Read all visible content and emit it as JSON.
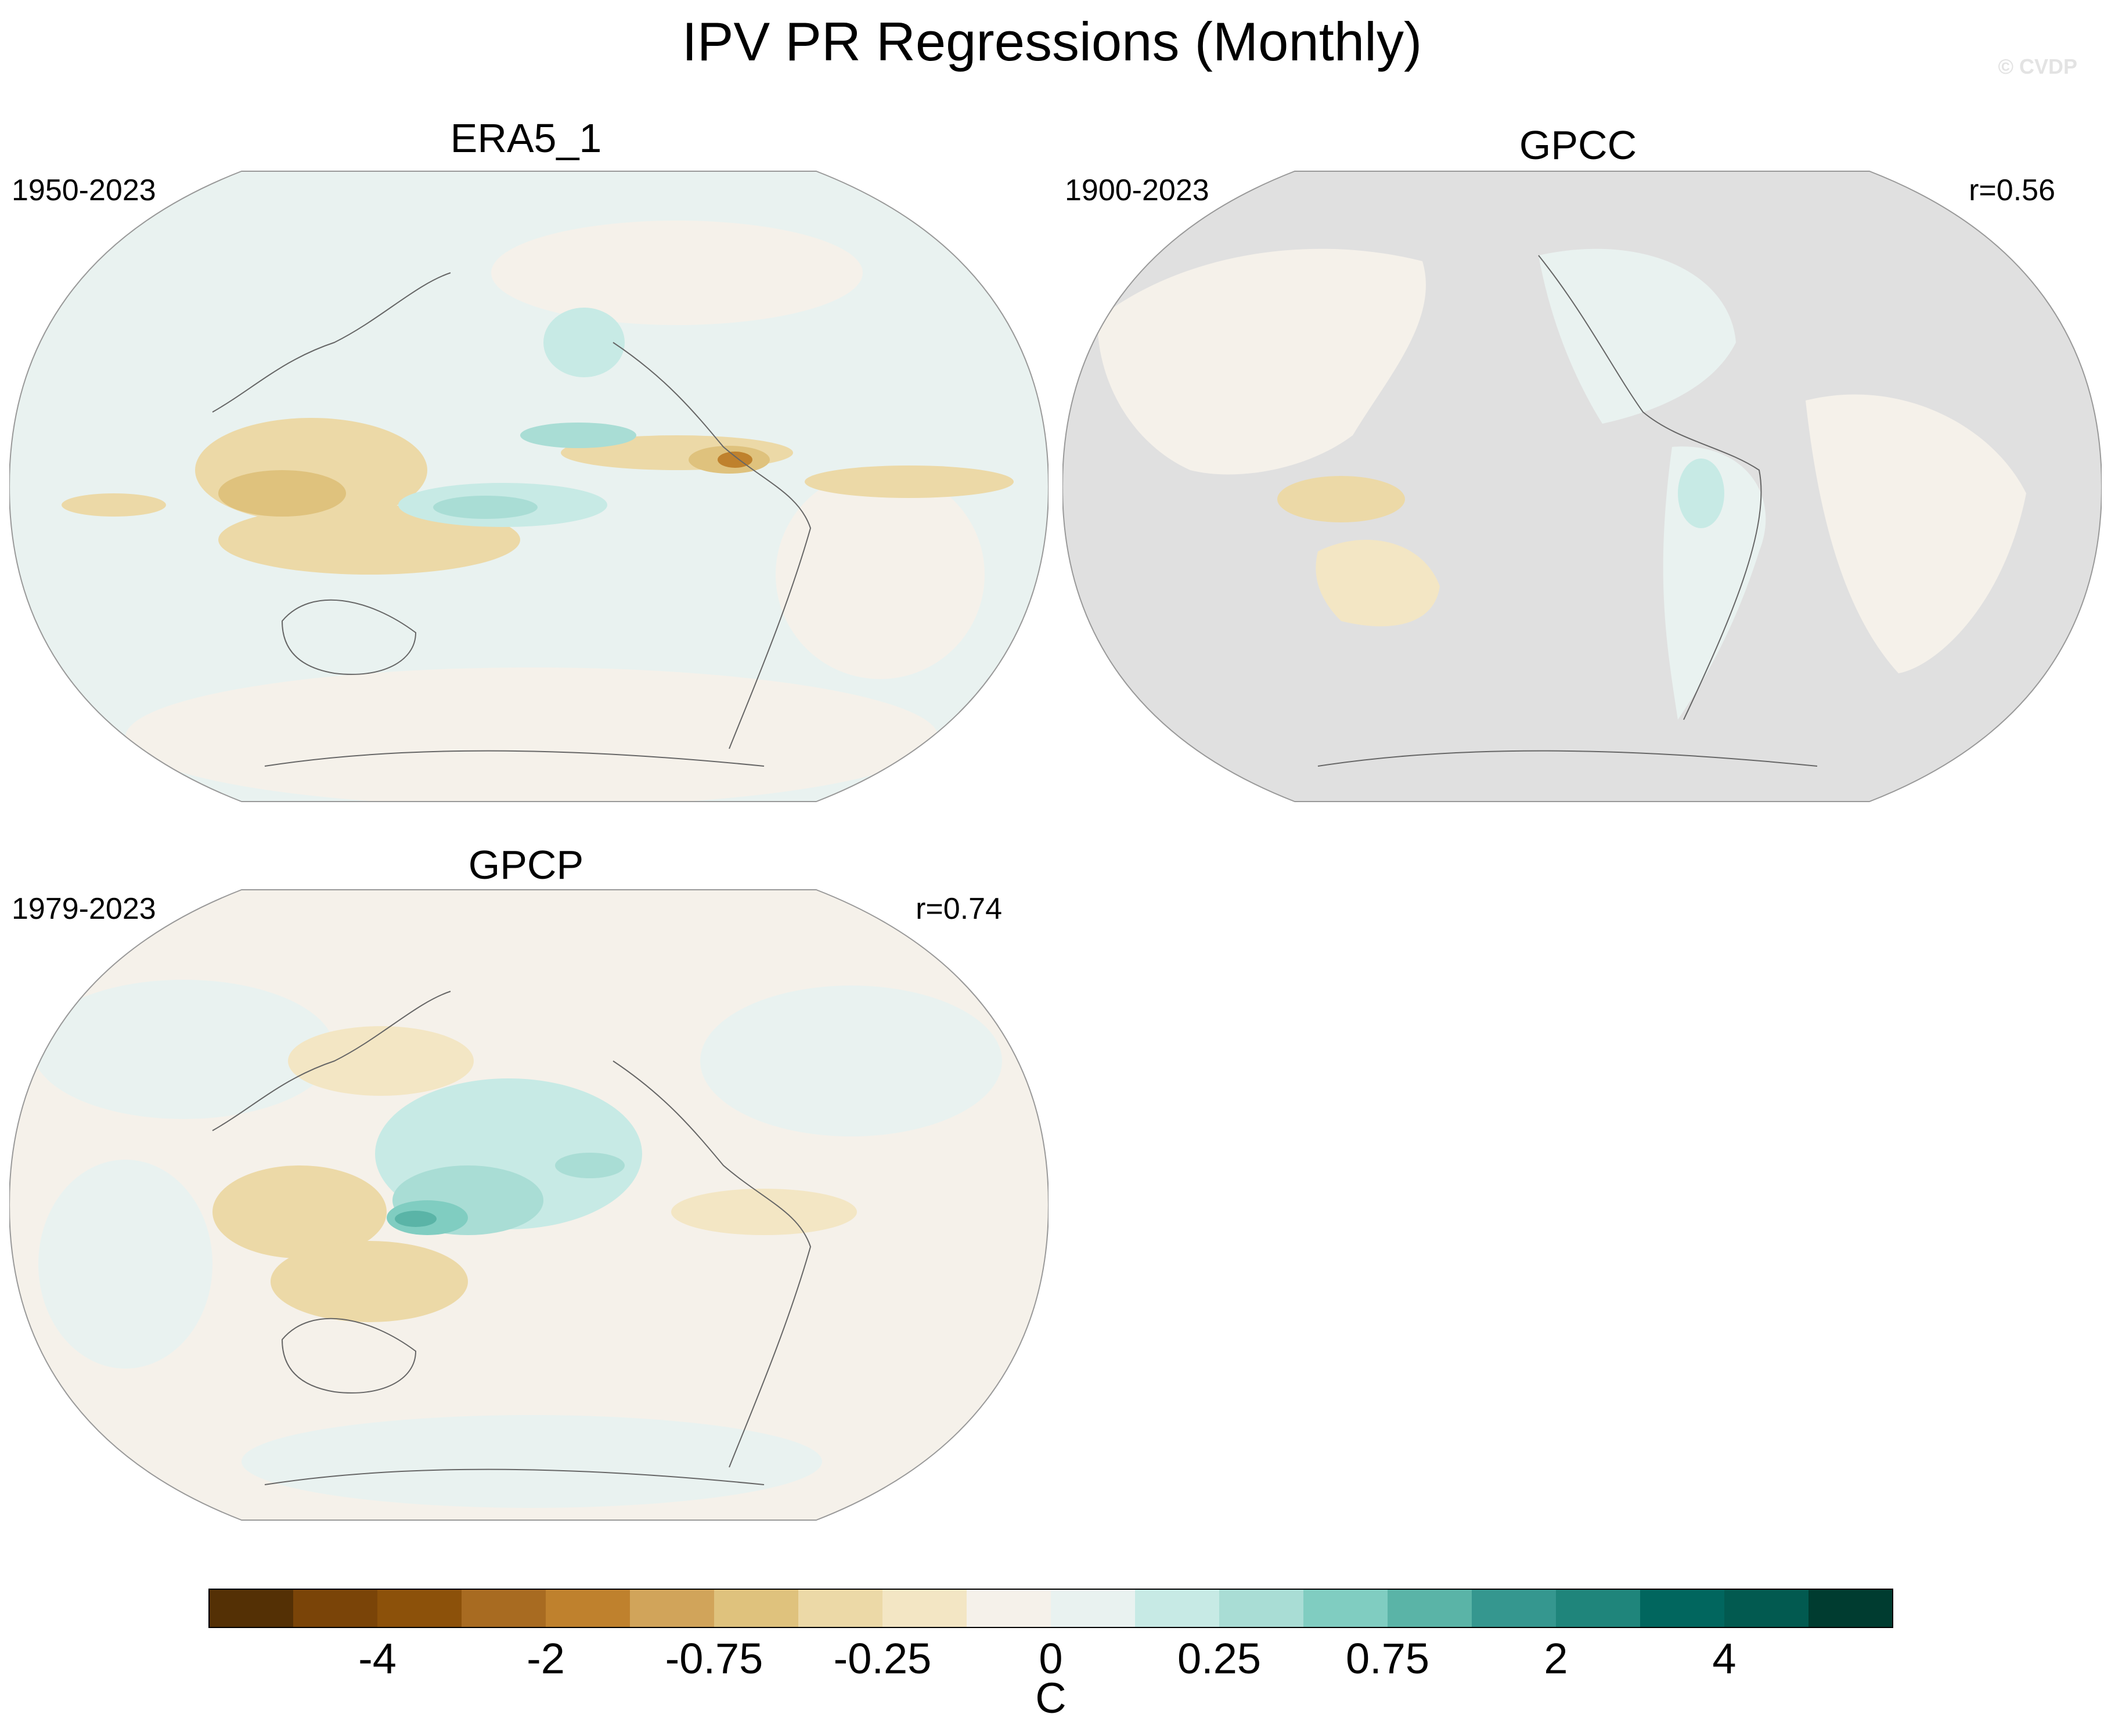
{
  "title": "IPV PR Regressions (Monthly)",
  "watermark": "© CVDP",
  "panels": [
    {
      "name": "ERA5_1",
      "period": "1950-2023",
      "corr": ""
    },
    {
      "name": "GPCC",
      "period": "1900-2023",
      "corr": "r=0.56"
    },
    {
      "name": "GPCP",
      "period": "1979-2023",
      "corr": "r=0.74"
    }
  ],
  "colorbar": {
    "colors": [
      "#543005",
      "#7a4408",
      "#8c510a",
      "#a86b21",
      "#bf812d",
      "#d1a45a",
      "#dfc27d",
      "#ecd9a7",
      "#f3e6c4",
      "#f5f1ea",
      "#e9f2f0",
      "#c7eae5",
      "#a9ddd5",
      "#80cdc1",
      "#5ab4a7",
      "#35978f",
      "#1f857b",
      "#01665e",
      "#025a50",
      "#003c30"
    ],
    "tick_labels": [
      "-4",
      "-2",
      "-0.75",
      "-0.25",
      "0",
      "0.25",
      "0.75",
      "2",
      "4"
    ],
    "units": "C"
  },
  "land_mask_color": "#e0e0e0",
  "map_background": "#e9f2f0",
  "anomaly_colors": {
    "dry": "#dfc27d",
    "wet": "#80cdc1",
    "neutral": "#f5f1ea"
  }
}
